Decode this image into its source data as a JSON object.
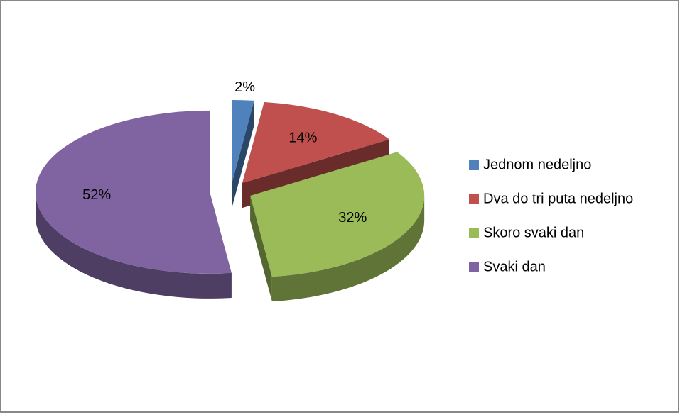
{
  "chart_data": {
    "type": "pie",
    "categories": [
      "Jednom nedeljno",
      "Dva do tri puta nedeljno",
      "Skoro svaki dan",
      "Svaki dan"
    ],
    "values": [
      2,
      14,
      32,
      52
    ],
    "value_labels": [
      "2%",
      "14%",
      "32%",
      "52%"
    ],
    "colors": [
      "#4f81bd",
      "#c0504d",
      "#9bbb59",
      "#8064a2"
    ],
    "legend": "right"
  }
}
